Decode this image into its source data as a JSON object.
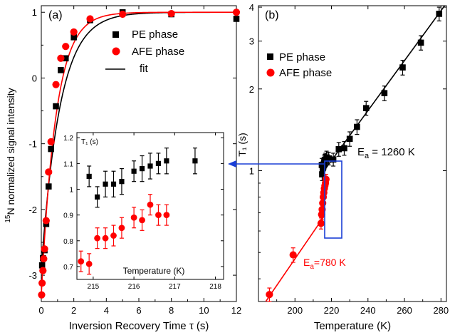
{
  "chart_data": [
    {
      "panel_label": "(a)",
      "type": "scatter",
      "xlabel": "Inversion Recovery Time τ (s)",
      "ylabel_superscript": "15",
      "ylabel": "N normalized signal intensity",
      "xlim": [
        0,
        12
      ],
      "ylim": [
        -3.4,
        1.1
      ],
      "xticks": [
        0,
        2,
        4,
        6,
        8,
        10,
        12
      ],
      "yticks": [
        -3,
        -2,
        -1,
        0,
        1
      ],
      "legend_position": "top-right",
      "series": [
        {
          "name": "PE phase",
          "marker": "square",
          "color": "#000000",
          "points": [
            [
              0.05,
              -2.85
            ],
            [
              0.1,
              -2.74
            ],
            [
              0.2,
              -2.62
            ],
            [
              0.3,
              -2.22
            ],
            [
              0.45,
              -1.65
            ],
            [
              0.6,
              -1.08
            ],
            [
              0.9,
              -0.43
            ],
            [
              1.2,
              0.12
            ],
            [
              1.5,
              0.3
            ],
            [
              2.0,
              0.62
            ],
            [
              3.0,
              0.88
            ],
            [
              5.0,
              1.0
            ],
            [
              8.0,
              0.97
            ],
            [
              12.0,
              0.9
            ]
          ]
        },
        {
          "name": "AFE phase",
          "marker": "circle",
          "color": "#ff0000",
          "points": [
            [
              0.02,
              -3.3
            ],
            [
              0.05,
              -3.12
            ],
            [
              0.1,
              -2.93
            ],
            [
              0.15,
              -2.75
            ],
            [
              0.2,
              -2.6
            ],
            [
              0.3,
              -2.17
            ],
            [
              0.45,
              -1.43
            ],
            [
              0.6,
              -0.97
            ],
            [
              0.9,
              -0.1
            ],
            [
              1.2,
              0.3
            ],
            [
              1.5,
              0.48
            ],
            [
              2.0,
              0.7
            ],
            [
              3.0,
              0.9
            ],
            [
              5.0,
              0.97
            ],
            [
              8.0,
              0.98
            ],
            [
              12.0,
              1.0
            ]
          ]
        }
      ],
      "fits": [
        {
          "name": "fit",
          "color": "#000000",
          "model": "1 - 2*A*exp(-t/T1)",
          "A": 1.95,
          "T1": 1.15
        },
        {
          "name": "",
          "color": "#ff0000",
          "model": "1 - 2*A*exp(-t/T1)",
          "A": 2.15,
          "T1": 0.9
        }
      ],
      "inset": {
        "type": "scatter",
        "ylabel": "T₁ (s)",
        "xlabel": "Temperature (K)",
        "xlim": [
          214.6,
          218.2
        ],
        "ylim": [
          0.65,
          1.22
        ],
        "xticks": [
          215,
          216,
          217,
          218
        ],
        "yticks": [
          0.7,
          0.8,
          0.9,
          1.0,
          1.1,
          1.2
        ],
        "ytick_labels": [
          "0.7",
          "0.8",
          "0.9",
          "1",
          "1.1",
          "1.2"
        ],
        "series": [
          {
            "marker": "square",
            "color": "#000000",
            "points": [
              [
                214.9,
                1.05,
                0.04
              ],
              [
                215.1,
                0.97,
                0.04
              ],
              [
                215.3,
                1.02,
                0.05
              ],
              [
                215.5,
                1.02,
                0.05
              ],
              [
                215.7,
                1.03,
                0.05
              ],
              [
                216.0,
                1.07,
                0.04
              ],
              [
                216.2,
                1.08,
                0.05
              ],
              [
                216.4,
                1.09,
                0.05
              ],
              [
                216.6,
                1.1,
                0.04
              ],
              [
                216.8,
                1.11,
                0.05
              ],
              [
                217.5,
                1.11,
                0.05
              ]
            ]
          },
          {
            "marker": "circle",
            "color": "#ff0000",
            "points": [
              [
                214.7,
                0.72,
                0.04
              ],
              [
                214.9,
                0.71,
                0.04
              ],
              [
                215.1,
                0.81,
                0.04
              ],
              [
                215.3,
                0.81,
                0.04
              ],
              [
                215.5,
                0.82,
                0.04
              ],
              [
                215.7,
                0.85,
                0.04
              ],
              [
                216.0,
                0.89,
                0.04
              ],
              [
                216.2,
                0.88,
                0.04
              ],
              [
                216.4,
                0.94,
                0.04
              ],
              [
                216.6,
                0.9,
                0.04
              ],
              [
                216.8,
                0.9,
                0.04
              ]
            ]
          }
        ]
      }
    },
    {
      "panel_label": "(b)",
      "type": "scatter",
      "xlabel": "Temperature (K)",
      "ylabel": "T₁ (s)",
      "xlim": [
        180,
        283
      ],
      "ylim": [
        0.33,
        4.05
      ],
      "yscale": "log",
      "xticks": [
        200,
        220,
        240,
        260,
        280
      ],
      "yticks": [
        1,
        2,
        3,
        4
      ],
      "legend_position": "upper-left",
      "series": [
        {
          "name": "PE phase",
          "marker": "square",
          "color": "#000000",
          "points": [
            [
              214.7,
              1.05,
              0.06
            ],
            [
              214.9,
              0.97,
              0.05
            ],
            [
              215.2,
              1.02,
              0.05
            ],
            [
              215.5,
              1.03,
              0.06
            ],
            [
              215.8,
              1.06,
              0.06
            ],
            [
              216.1,
              1.08,
              0.06
            ],
            [
              216.4,
              1.09,
              0.06
            ],
            [
              216.8,
              1.1,
              0.06
            ],
            [
              217.3,
              1.12,
              0.06
            ],
            [
              218.5,
              1.11,
              0.06
            ],
            [
              221,
              1.1,
              0.06
            ],
            [
              224,
              1.2,
              0.07
            ],
            [
              227,
              1.21,
              0.07
            ],
            [
              230,
              1.31,
              0.08
            ],
            [
              234,
              1.45,
              0.09
            ],
            [
              239,
              1.7,
              0.1
            ],
            [
              249,
              1.93,
              0.12
            ],
            [
              259,
              2.4,
              0.15
            ],
            [
              269,
              2.96,
              0.18
            ],
            [
              279,
              3.78,
              0.22
            ]
          ]
        },
        {
          "name": "AFE phase",
          "marker": "circle",
          "color": "#ff0000",
          "points": [
            [
              186,
              0.35,
              0.02
            ],
            [
              199,
              0.49,
              0.03
            ],
            [
              214.3,
              0.64,
              0.03
            ],
            [
              214.6,
              0.69,
              0.03
            ],
            [
              214.9,
              0.72,
              0.03
            ],
            [
              215.2,
              0.76,
              0.03
            ],
            [
              215.5,
              0.8,
              0.03
            ],
            [
              215.8,
              0.83,
              0.03
            ],
            [
              216.1,
              0.86,
              0.03
            ],
            [
              216.4,
              0.88,
              0.04
            ],
            [
              216.7,
              0.9,
              0.04
            ],
            [
              217.0,
              0.93,
              0.04
            ]
          ]
        }
      ],
      "fits": [
        {
          "color": "#000000",
          "x_range": [
            214,
            282
          ],
          "y_range": [
            0.96,
            4.05
          ]
        },
        {
          "color": "#ff0000",
          "x_range": [
            184,
            216
          ],
          "y_range": [
            0.33,
            0.68
          ]
        }
      ],
      "annotations": [
        {
          "text_main": "E",
          "text_sub": "a",
          "text_rest": " = 1260 K",
          "color": "#000000"
        },
        {
          "text_main": "E",
          "text_sub": "a",
          "text_rest": "=780 K",
          "color": "#ff0000"
        }
      ]
    }
  ]
}
